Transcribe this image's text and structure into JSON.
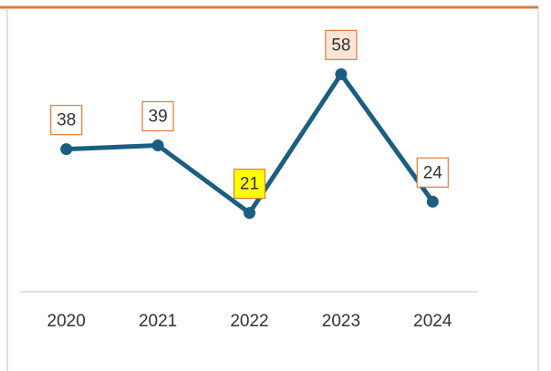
{
  "chart_data": {
    "type": "line",
    "categories": [
      "2020",
      "2021",
      "2022",
      "2023",
      "2024"
    ],
    "series": [
      {
        "name": null,
        "color": "#1b5e82",
        "values": [
          38,
          39,
          21,
          58,
          24
        ]
      }
    ],
    "label_fills": [
      "#ffffff",
      "#ffffff",
      "#ffff00",
      "#fce4d6",
      "#ffffff"
    ],
    "label_border": "#e07b39",
    "ylim": [
      0,
      70
    ],
    "grid": false
  }
}
